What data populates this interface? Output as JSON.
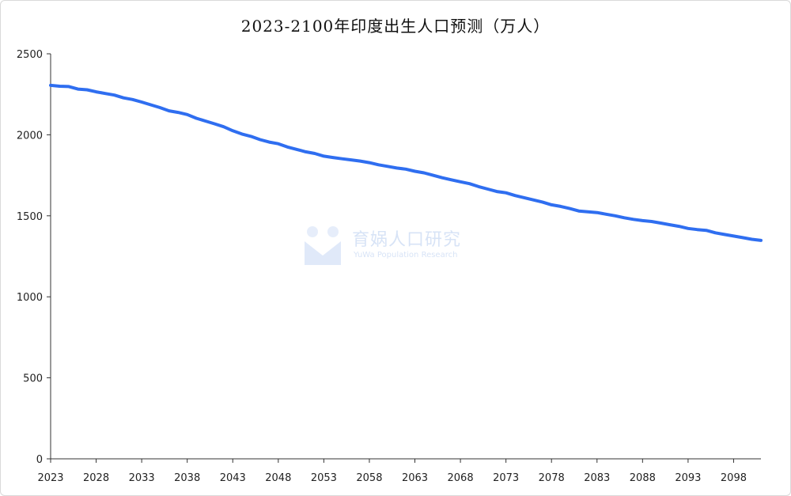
{
  "chart_data": {
    "type": "line",
    "title": "2023-2100年印度出生人口预测（万人）",
    "xlabel": "",
    "ylabel": "",
    "x_start": 2023,
    "x_end": 2101,
    "x_ticks": [
      "2023",
      "2028",
      "2033",
      "2038",
      "2043",
      "2048",
      "2053",
      "2058",
      "2063",
      "2068",
      "2073",
      "2078",
      "2083",
      "2088",
      "2093",
      "2098"
    ],
    "y_ticks": [
      "0",
      "500",
      "1000",
      "1500",
      "2000",
      "2500"
    ],
    "ylim": [
      0,
      2500
    ],
    "grid": false,
    "series_color": "#2f6ef0",
    "series": [
      {
        "name": "",
        "x": [
          2023,
          2024,
          2025,
          2026,
          2027,
          2028,
          2029,
          2030,
          2031,
          2032,
          2033,
          2034,
          2035,
          2036,
          2037,
          2038,
          2039,
          2040,
          2041,
          2042,
          2043,
          2044,
          2045,
          2046,
          2047,
          2048,
          2049,
          2050,
          2051,
          2052,
          2053,
          2054,
          2055,
          2056,
          2057,
          2058,
          2059,
          2060,
          2061,
          2062,
          2063,
          2064,
          2065,
          2066,
          2067,
          2068,
          2069,
          2070,
          2071,
          2072,
          2073,
          2074,
          2075,
          2076,
          2077,
          2078,
          2079,
          2080,
          2081,
          2082,
          2083,
          2084,
          2085,
          2086,
          2087,
          2088,
          2089,
          2090,
          2091,
          2092,
          2093,
          2094,
          2095,
          2096,
          2097,
          2098,
          2099,
          2100,
          2101
        ],
        "values": [
          2305,
          2300,
          2298,
          2282,
          2278,
          2265,
          2255,
          2245,
          2228,
          2218,
          2202,
          2185,
          2168,
          2148,
          2138,
          2125,
          2102,
          2085,
          2068,
          2050,
          2025,
          2005,
          1990,
          1970,
          1955,
          1945,
          1925,
          1910,
          1895,
          1885,
          1868,
          1860,
          1852,
          1845,
          1838,
          1828,
          1815,
          1805,
          1795,
          1788,
          1775,
          1765,
          1750,
          1735,
          1722,
          1710,
          1698,
          1680,
          1665,
          1650,
          1642,
          1625,
          1612,
          1598,
          1585,
          1568,
          1558,
          1545,
          1530,
          1525,
          1520,
          1510,
          1500,
          1488,
          1478,
          1470,
          1465,
          1455,
          1445,
          1435,
          1422,
          1415,
          1410,
          1395,
          1385,
          1375,
          1365,
          1355,
          1348
        ]
      }
    ]
  },
  "watermark": {
    "text": "育娲人口研究",
    "subtext": "YuWa Population Research"
  }
}
